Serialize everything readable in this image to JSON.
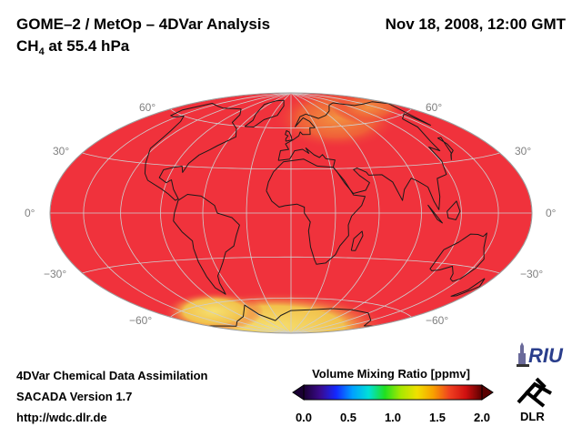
{
  "header": {
    "title_left": "GOME–2 / MetOp – 4DVar Analysis",
    "subtitle_prefix": "CH",
    "subtitle_sub": "4",
    "subtitle_suffix": " at 55.4 hPa",
    "title_right": "Nov 18, 2008, 12:00 GMT"
  },
  "map": {
    "projection": "Hammer-Aitoff",
    "latitude_labels": {
      "n60": "60°",
      "n30": "30°",
      "eq": "0°",
      "s30": "−30°",
      "s60": "−60°"
    },
    "colors": {
      "background_field": "#f0323c",
      "grid": "#c8c8c8",
      "coast": "#1a1a1a",
      "low_value_yellow": "#f0d24a",
      "orange": "#f29040"
    }
  },
  "colorbar": {
    "title": "Volume Mixing Ratio [ppmv]",
    "ticks": [
      "0.0",
      "0.5",
      "1.0",
      "1.5",
      "2.0"
    ],
    "range": [
      0.0,
      2.0
    ],
    "colors": [
      "#1a0033",
      "#3a0a8c",
      "#1428ff",
      "#00a0ff",
      "#00e0d8",
      "#20e020",
      "#a8e800",
      "#f0e000",
      "#f8a000",
      "#f04020",
      "#d01010",
      "#5a0000"
    ]
  },
  "footer": {
    "line1": "4DVar Chemical Data Assimilation",
    "line2": "SACADA Version 1.7",
    "line3": "http://wdc.dlr.de"
  },
  "logos": {
    "riu_text": "RIU",
    "dlr_text": "DLR"
  }
}
